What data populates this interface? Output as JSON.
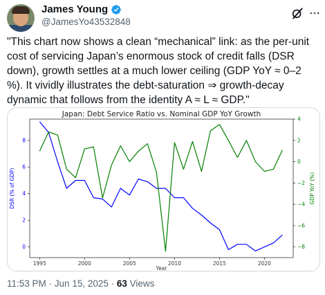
{
  "author": {
    "name": "James Young",
    "handle": "@JamesYo43532848"
  },
  "tweet": {
    "text": "\"This chart now shows a clean “mechanical” link: as the per-unit cost of servicing Japan’s enormous stock of credit falls (DSR down), growth settles at a much lower ceiling (GDP YoY ≈ 0–2 %). It vividly illustrates the debt-saturation ⇒ growth-decay dynamic that follows from the identity A ≈ L ≈ GDP.\""
  },
  "footer": {
    "time": "11:53 PM",
    "sep1": " · ",
    "date": "Jun 15, 2025",
    "sep2": " · ",
    "views_count": "63",
    "views_label": " Views"
  },
  "icons": [
    "verified-badge-icon",
    "grok-icon",
    "more-icon"
  ],
  "colors": {
    "verified": "#1d9bf0",
    "dsr_series": "#0000ff",
    "gdp_series": "#008000"
  },
  "chart_data": {
    "type": "line",
    "title": "Japan: Debt Service Ratio vs. Nominal GDP YoY Growth",
    "xlabel": "Year",
    "ylabel_left": "DSR (% of GDP)",
    "ylabel_right": "GDP YoY (%)",
    "x": [
      1995,
      1996,
      1997,
      1998,
      1999,
      2000,
      2001,
      2002,
      2003,
      2004,
      2005,
      2006,
      2007,
      2008,
      2009,
      2010,
      2011,
      2012,
      2013,
      2014,
      2015,
      2016,
      2017,
      2018,
      2019,
      2020,
      2021,
      2022
    ],
    "xlim": [
      1993.9,
      2023.2
    ],
    "xticks": [
      1995,
      2000,
      2005,
      2010,
      2015,
      2020
    ],
    "ylim_left": [
      -0.8,
      9.6
    ],
    "yticks_left": [
      0,
      2,
      4,
      6,
      8
    ],
    "ylim_right": [
      -9.0,
      4.0
    ],
    "yticks_right": [
      -8,
      -6,
      -4,
      -2,
      0,
      2,
      4
    ],
    "grid": false,
    "series": [
      {
        "axis": "left",
        "values": [
          9.4,
          8.6,
          6.4,
          4.4,
          5.0,
          5.0,
          3.7,
          3.6,
          3.0,
          4.4,
          3.9,
          5.1,
          4.9,
          4.4,
          4.4,
          3.7,
          3.7,
          2.9,
          2.4,
          1.8,
          1.3,
          -0.2,
          0.2,
          0.2,
          -0.3,
          0.0,
          0.3,
          0.9
        ]
      },
      {
        "axis": "right",
        "values": [
          1.0,
          2.8,
          2.5,
          -0.7,
          -1.5,
          1.2,
          1.4,
          -3.4,
          -0.3,
          1.5,
          0.0,
          1.0,
          1.7,
          -1.0,
          -8.4,
          1.8,
          -0.7,
          1.9,
          -0.9,
          2.9,
          3.5,
          2.0,
          0.4,
          2.0,
          0.0,
          -0.9,
          -0.7,
          1.1
        ]
      }
    ]
  }
}
